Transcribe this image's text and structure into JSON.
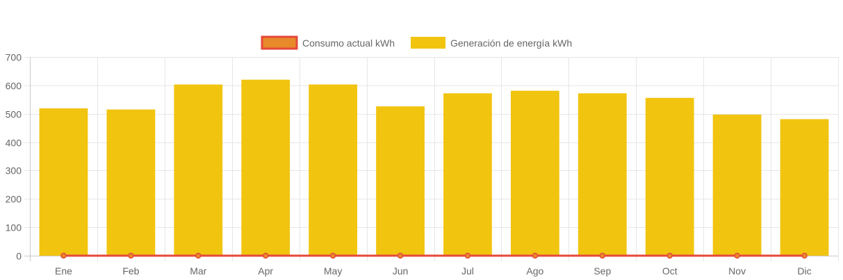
{
  "chart_data": {
    "type": "bar",
    "title": "",
    "xlabel": "",
    "ylabel": "",
    "categories": [
      "Ene",
      "Feb",
      "Mar",
      "Apr",
      "May",
      "Jun",
      "Jul",
      "Ago",
      "Sep",
      "Oct",
      "Nov",
      "Dic"
    ],
    "ylim": [
      0,
      700
    ],
    "yticks": [
      0,
      100,
      200,
      300,
      400,
      500,
      600,
      700
    ],
    "grid": true,
    "legend_position": "top-center",
    "series": [
      {
        "name": "Consumo actual kWh",
        "type": "line",
        "color": "#e8892a",
        "border_color": "#e5483a",
        "values": [
          0,
          0,
          0,
          0,
          0,
          0,
          0,
          0,
          0,
          0,
          0,
          0
        ]
      },
      {
        "name": "Generación de energía kWh",
        "type": "bar",
        "color": "#f1c40f",
        "values": [
          519,
          515,
          603,
          620,
          603,
          526,
          572,
          581,
          572,
          556,
          497,
          481
        ]
      }
    ]
  }
}
